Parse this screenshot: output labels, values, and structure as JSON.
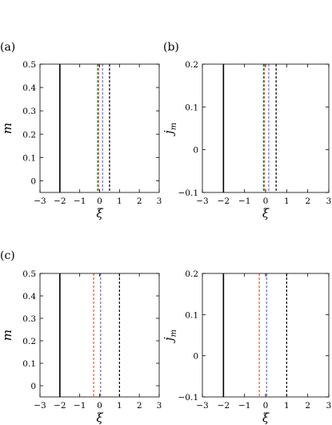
{
  "chart_data": [
    {
      "type": "line",
      "panel_label": "(a)",
      "xlabel": "ξ",
      "ylabel": "m",
      "ylabel_sub": "",
      "xlim": [
        -3,
        3
      ],
      "ylim": [
        -0.05,
        0.5
      ],
      "xticks": [
        "−3",
        "−2",
        "−1",
        "0",
        "1",
        "2",
        "3"
      ],
      "yticks": [
        "0",
        "0.1",
        "0.2",
        "0.3",
        "0.4",
        "0.5"
      ],
      "ytick_values": [
        0,
        0.1,
        0.2,
        0.3,
        0.4,
        0.5
      ],
      "vlines": [
        {
          "x": -2.0,
          "color": "#000000",
          "style": "solid"
        },
        {
          "x": -0.1,
          "color": "#1f7a3a",
          "style": "dashed"
        },
        {
          "x": -0.05,
          "color": "#d4622a",
          "style": "dashed"
        },
        {
          "x": 0.15,
          "color": "#6a6ad4",
          "style": "dashed"
        },
        {
          "x": 0.5,
          "color": "#000000",
          "style": "dashed"
        }
      ]
    },
    {
      "type": "line",
      "panel_label": "(b)",
      "xlabel": "ξ",
      "ylabel": "j",
      "ylabel_sub": "m",
      "xlim": [
        -3,
        3
      ],
      "ylim": [
        -0.1,
        0.2
      ],
      "xticks": [
        "−3",
        "−2",
        "−1",
        "0",
        "1",
        "2",
        "3"
      ],
      "yticks": [
        "−0.1",
        "0",
        "0.1",
        "0.2"
      ],
      "ytick_values": [
        -0.1,
        0,
        0.1,
        0.2
      ],
      "vlines": [
        {
          "x": -2.0,
          "color": "#000000",
          "style": "solid"
        },
        {
          "x": -0.1,
          "color": "#1f7a3a",
          "style": "dashed"
        },
        {
          "x": -0.05,
          "color": "#d4622a",
          "style": "dashed"
        },
        {
          "x": 0.15,
          "color": "#6a6ad4",
          "style": "dashed"
        },
        {
          "x": 0.5,
          "color": "#000000",
          "style": "dashed"
        }
      ]
    },
    {
      "type": "line",
      "panel_label": "(c)",
      "xlabel": "ξ",
      "ylabel": "m",
      "ylabel_sub": "",
      "xlim": [
        -3,
        3
      ],
      "ylim": [
        -0.05,
        0.5
      ],
      "xticks": [
        "−3",
        "−2",
        "−1",
        "0",
        "1",
        "2",
        "3"
      ],
      "yticks": [
        "0",
        "0.1",
        "0.2",
        "0.3",
        "0.4",
        "0.5"
      ],
      "ytick_values": [
        0,
        0.1,
        0.2,
        0.3,
        0.4,
        0.5
      ],
      "vlines": [
        {
          "x": -2.0,
          "color": "#000000",
          "style": "solid"
        },
        {
          "x": -0.3,
          "color": "#d4622a",
          "style": "dashed"
        },
        {
          "x": 0.05,
          "color": "#6a6ad4",
          "style": "dashed"
        },
        {
          "x": 1.0,
          "color": "#000000",
          "style": "dashed"
        }
      ]
    },
    {
      "type": "line",
      "panel_label": "",
      "xlabel": "ξ",
      "ylabel": "j",
      "ylabel_sub": "m",
      "xlim": [
        -3,
        3
      ],
      "ylim": [
        -0.1,
        0.2
      ],
      "xticks": [
        "−3",
        "−2",
        "−1",
        "0",
        "1",
        "2",
        "3"
      ],
      "yticks": [
        "−0.1",
        "0",
        "0.1",
        "0.2"
      ],
      "ytick_values": [
        -0.1,
        0,
        0.1,
        0.2
      ],
      "vlines": [
        {
          "x": -2.0,
          "color": "#000000",
          "style": "solid"
        },
        {
          "x": -0.3,
          "color": "#d4622a",
          "style": "dashed"
        },
        {
          "x": 0.05,
          "color": "#6a6ad4",
          "style": "dashed"
        },
        {
          "x": 1.0,
          "color": "#000000",
          "style": "dashed"
        }
      ]
    }
  ]
}
